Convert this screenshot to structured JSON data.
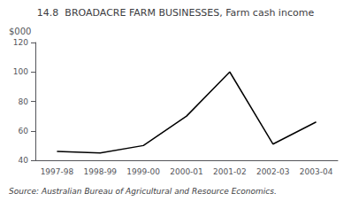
{
  "chart_data": {
    "type": "line",
    "title": "14.8  BROADACRE FARM BUSINESSES, Farm cash income",
    "ylabel": "$000",
    "annotations": [
      "Source: Australian Bureau of Agricultural and Resource Economics."
    ],
    "categories": [
      "1997-98",
      "1998-99",
      "1999-00",
      "2000-01",
      "2001-02",
      "2002-03",
      "2003-04"
    ],
    "values": [
      46,
      45,
      50,
      70,
      100,
      51,
      66
    ],
    "color": "#000000",
    "ylim": [
      40,
      120
    ],
    "yticks": [
      40,
      60,
      80,
      100,
      120
    ],
    "grid": false
  }
}
